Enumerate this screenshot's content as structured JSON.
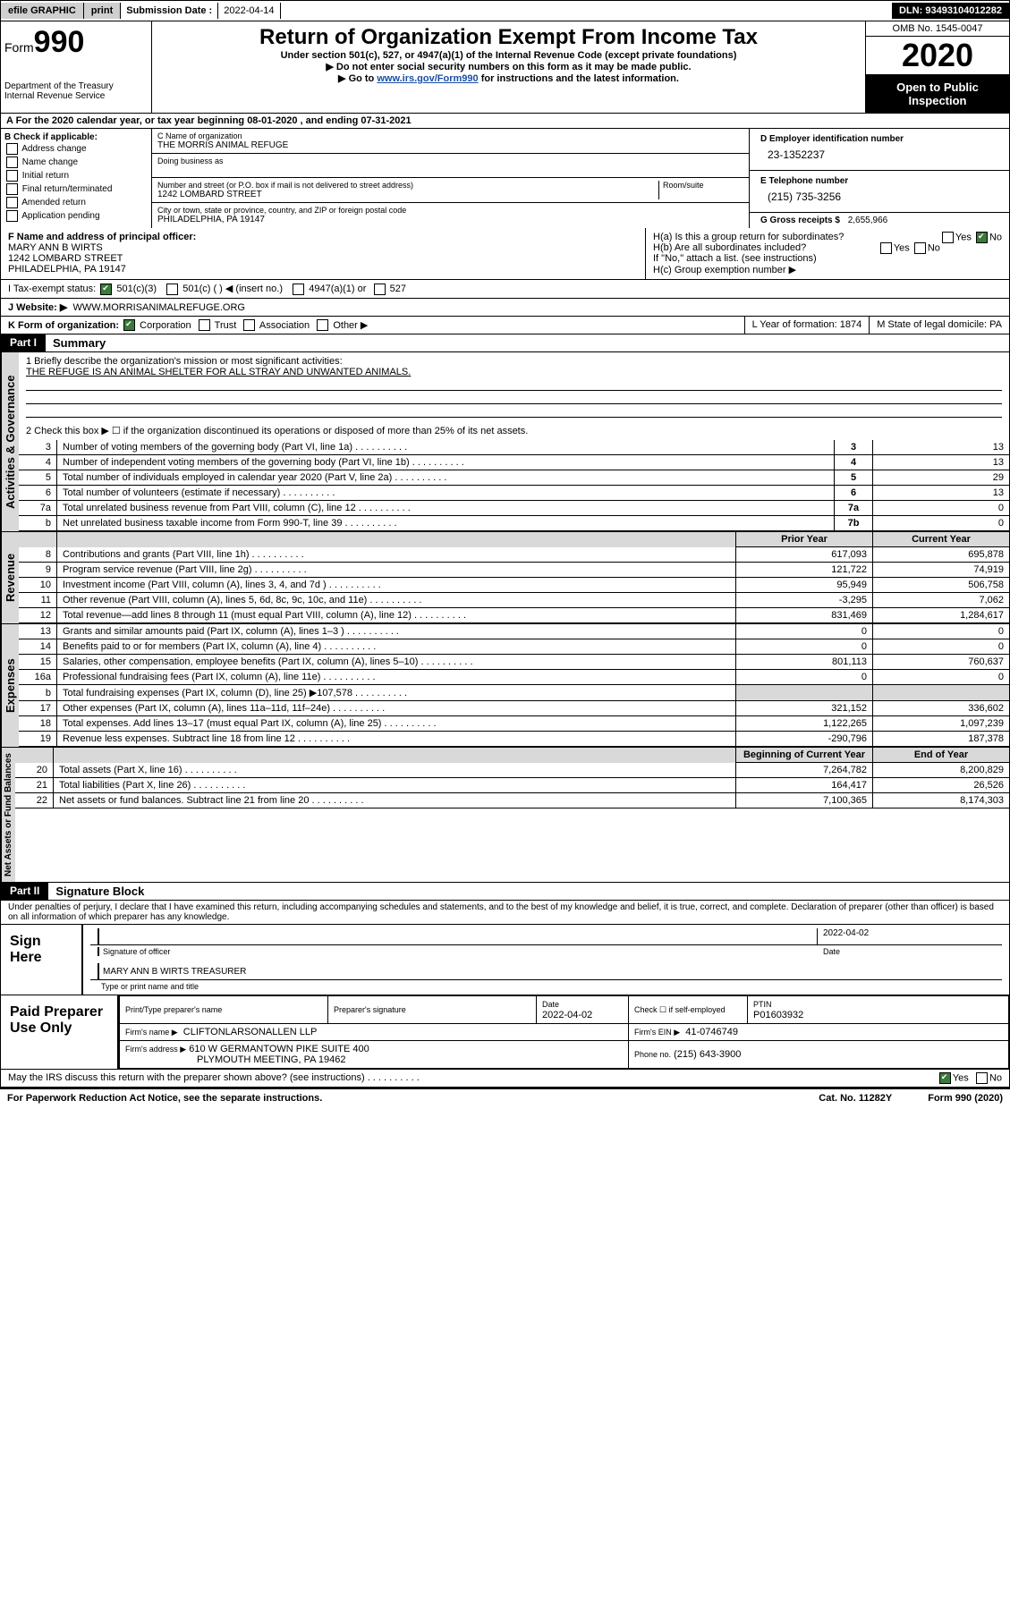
{
  "colors": {
    "black": "#000000",
    "white": "#ffffff",
    "grey_btn": "#cfcfcf",
    "grey_bg": "#d9d9d9",
    "link": "#1a4fa3",
    "check_green": "#3b7a3b"
  },
  "topbar": {
    "efile": "efile GRAPHIC",
    "print": "print",
    "sub_date_label": "Submission Date :",
    "sub_date": "2022-04-14",
    "dln": "DLN: 93493104012282"
  },
  "header": {
    "form_word": "Form",
    "form_num": "990",
    "dept": "Department of the Treasury",
    "irs": "Internal Revenue Service",
    "title": "Return of Organization Exempt From Income Tax",
    "sub1": "Under section 501(c), 527, or 4947(a)(1) of the Internal Revenue Code (except private foundations)",
    "sub2": "Do not enter social security numbers on this form as it may be made public.",
    "sub3a": "Go to ",
    "sub3_link": "www.irs.gov/Form990",
    "sub3b": " for instructions and the latest information.",
    "omb": "OMB No. 1545-0047",
    "year": "2020",
    "open": "Open to Public Inspection"
  },
  "rowA": "A For the 2020 calendar year, or tax year beginning 08-01-2020   , and ending 07-31-2021",
  "boxB": {
    "label": "B Check if applicable:",
    "opts": [
      "Address change",
      "Name change",
      "Initial return",
      "Final return/terminated",
      "Amended return",
      "Application pending"
    ]
  },
  "boxC": {
    "name_lbl": "C Name of organization",
    "name": "THE MORRIS ANIMAL REFUGE",
    "dba_lbl": "Doing business as",
    "addr_lbl": "Number and street (or P.O. box if mail is not delivered to street address)",
    "room_lbl": "Room/suite",
    "addr": "1242 LOMBARD STREET",
    "city_lbl": "City or town, state or province, country, and ZIP or foreign postal code",
    "city": "PHILADELPHIA, PA  19147"
  },
  "boxD": {
    "lbl": "D Employer identification number",
    "val": "23-1352237"
  },
  "boxE": {
    "lbl": "E Telephone number",
    "val": "(215) 735-3256"
  },
  "boxG": {
    "lbl": "G Gross receipts $",
    "val": "2,655,966"
  },
  "boxF": {
    "lbl": "F  Name and address of principal officer:",
    "name": "MARY ANN B WIRTS",
    "addr1": "1242 LOMBARD STREET",
    "addr2": "PHILADELPHIA, PA  19147"
  },
  "boxH": {
    "a": "H(a)  Is this a group return for subordinates?",
    "b": "H(b)  Are all subordinates included?",
    "note": "If \"No,\" attach a list. (see instructions)",
    "c": "H(c)  Group exemption number ▶",
    "yes": "Yes",
    "no": "No"
  },
  "rowI": {
    "lbl": "I   Tax-exempt status:",
    "o1": "501(c)(3)",
    "o2": "501(c) (  ) ◀ (insert no.)",
    "o3": "4947(a)(1) or",
    "o4": "527"
  },
  "rowJ": {
    "lbl": "J   Website: ▶",
    "val": "WWW.MORRISANIMALREFUGE.ORG"
  },
  "rowK": {
    "lbl": "K Form of organization:",
    "o1": "Corporation",
    "o2": "Trust",
    "o3": "Association",
    "o4": "Other ▶",
    "L": "L Year of formation: 1874",
    "M": "M State of legal domicile: PA"
  },
  "part1": {
    "hdr": "Part I",
    "title": "Summary",
    "q1": "1  Briefly describe the organization's mission or most significant activities:",
    "q1_ans": "THE REFUGE IS AN ANIMAL SHELTER FOR ALL STRAY AND UNWANTED ANIMALS.",
    "q2": "2  Check this box ▶ ☐  if the organization discontinued its operations or disposed of more than 25% of its net assets.",
    "gov_tab": "Activities & Governance",
    "rev_tab": "Revenue",
    "exp_tab": "Expenses",
    "net_tab": "Net Assets or Fund Balances",
    "col_prior": "Prior Year",
    "col_current": "Current Year",
    "col_beg": "Beginning of Current Year",
    "col_end": "End of Year",
    "lines_top": [
      {
        "n": "3",
        "t": "Number of voting members of the governing body (Part VI, line 1a)",
        "v": "13"
      },
      {
        "n": "4",
        "t": "Number of independent voting members of the governing body (Part VI, line 1b)",
        "v": "13"
      },
      {
        "n": "5",
        "t": "Total number of individuals employed in calendar year 2020 (Part V, line 2a)",
        "v": "29"
      },
      {
        "n": "6",
        "t": "Total number of volunteers (estimate if necessary)",
        "v": "13"
      },
      {
        "n": "7a",
        "t": "Total unrelated business revenue from Part VIII, column (C), line 12",
        "v": "0"
      },
      {
        "n": "b",
        "t": "Net unrelated business taxable income from Form 990-T, line 39",
        "h": "7b",
        "v": "0"
      }
    ],
    "lines_rev": [
      {
        "n": "8",
        "t": "Contributions and grants (Part VIII, line 1h)",
        "p": "617,093",
        "c": "695,878"
      },
      {
        "n": "9",
        "t": "Program service revenue (Part VIII, line 2g)",
        "p": "121,722",
        "c": "74,919"
      },
      {
        "n": "10",
        "t": "Investment income (Part VIII, column (A), lines 3, 4, and 7d )",
        "p": "95,949",
        "c": "506,758"
      },
      {
        "n": "11",
        "t": "Other revenue (Part VIII, column (A), lines 5, 6d, 8c, 9c, 10c, and 11e)",
        "p": "-3,295",
        "c": "7,062"
      },
      {
        "n": "12",
        "t": "Total revenue—add lines 8 through 11 (must equal Part VIII, column (A), line 12)",
        "p": "831,469",
        "c": "1,284,617"
      }
    ],
    "lines_exp": [
      {
        "n": "13",
        "t": "Grants and similar amounts paid (Part IX, column (A), lines 1–3 )",
        "p": "0",
        "c": "0"
      },
      {
        "n": "14",
        "t": "Benefits paid to or for members (Part IX, column (A), line 4)",
        "p": "0",
        "c": "0"
      },
      {
        "n": "15",
        "t": "Salaries, other compensation, employee benefits (Part IX, column (A), lines 5–10)",
        "p": "801,113",
        "c": "760,637"
      },
      {
        "n": "16a",
        "t": "Professional fundraising fees (Part IX, column (A), line 11e)",
        "p": "0",
        "c": "0"
      },
      {
        "n": "b",
        "t": "Total fundraising expenses (Part IX, column (D), line 25) ▶107,578",
        "p": "",
        "c": ""
      },
      {
        "n": "17",
        "t": "Other expenses (Part IX, column (A), lines 11a–11d, 11f–24e)",
        "p": "321,152",
        "c": "336,602"
      },
      {
        "n": "18",
        "t": "Total expenses. Add lines 13–17 (must equal Part IX, column (A), line 25)",
        "p": "1,122,265",
        "c": "1,097,239"
      },
      {
        "n": "19",
        "t": "Revenue less expenses. Subtract line 18 from line 12",
        "p": "-290,796",
        "c": "187,378"
      }
    ],
    "lines_net": [
      {
        "n": "20",
        "t": "Total assets (Part X, line 16)",
        "p": "7,264,782",
        "c": "8,200,829"
      },
      {
        "n": "21",
        "t": "Total liabilities (Part X, line 26)",
        "p": "164,417",
        "c": "26,526"
      },
      {
        "n": "22",
        "t": "Net assets or fund balances. Subtract line 21 from line 20",
        "p": "7,100,365",
        "c": "8,174,303"
      }
    ]
  },
  "part2": {
    "hdr": "Part II",
    "title": "Signature Block",
    "decl": "Under penalties of perjury, I declare that I have examined this return, including accompanying schedules and statements, and to the best of my knowledge and belief, it is true, correct, and complete. Declaration of preparer (other than officer) is based on all information of which preparer has any knowledge.",
    "sign_here": "Sign Here",
    "sig_officer": "Signature of officer",
    "date_lbl": "Date",
    "sig_date": "2022-04-02",
    "officer_name": "MARY ANN B WIRTS  TREASURER",
    "type_name": "Type or print name and title",
    "paid": "Paid Preparer Use Only",
    "prep_name_lbl": "Print/Type preparer's name",
    "prep_sig_lbl": "Preparer's signature",
    "prep_date": "2022-04-02",
    "check_self": "Check ☐ if self-employed",
    "ptin_lbl": "PTIN",
    "ptin": "P01603932",
    "firm_name_lbl": "Firm's name  ▶",
    "firm_name": "CLIFTONLARSONALLEN LLP",
    "firm_ein_lbl": "Firm's EIN ▶",
    "firm_ein": "41-0746749",
    "firm_addr_lbl": "Firm's address ▶",
    "firm_addr1": "610 W GERMANTOWN PIKE SUITE 400",
    "firm_addr2": "PLYMOUTH MEETING, PA  19462",
    "phone_lbl": "Phone no.",
    "phone": "(215) 643-3900",
    "discuss": "May the IRS discuss this return with the preparer shown above? (see instructions)",
    "yes": "Yes",
    "no": "No"
  },
  "footer": {
    "left": "For Paperwork Reduction Act Notice, see the separate instructions.",
    "mid": "Cat. No. 11282Y",
    "right": "Form 990 (2020)"
  }
}
